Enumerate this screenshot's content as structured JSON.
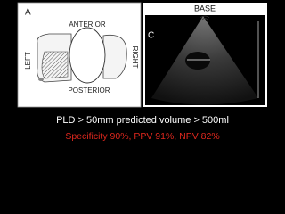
{
  "left_panel": {
    "label": "A",
    "top": "ANTERIOR",
    "right": "RIGHT",
    "left": "LEFT",
    "bottom": "POSTERIOR"
  },
  "right_panel": {
    "label": "C",
    "title": "BASE"
  },
  "caption": {
    "line1": "PLD > 50mm predicted volume > 500ml",
    "line2": "Specificity 90%, PPV 91%, NPV 82%"
  }
}
